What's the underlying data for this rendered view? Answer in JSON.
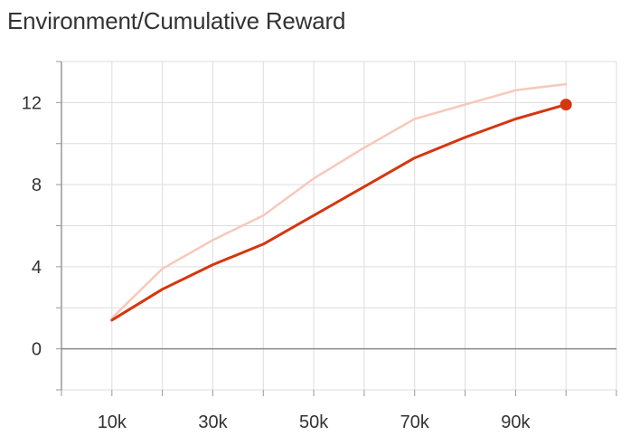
{
  "chart_data": {
    "type": "line",
    "title": "Environment/Cumulative Reward",
    "xlabel": "",
    "ylabel": "",
    "xlim": [
      0,
      110000
    ],
    "ylim": [
      -2,
      14
    ],
    "x_ticks": [
      10000,
      30000,
      50000,
      70000,
      90000
    ],
    "x_tick_labels": [
      "10k",
      "30k",
      "50k",
      "70k",
      "90k"
    ],
    "x_grid": [
      0,
      10000,
      20000,
      30000,
      40000,
      50000,
      60000,
      70000,
      80000,
      90000,
      100000,
      110000
    ],
    "y_ticks": [
      0,
      4,
      8,
      12
    ],
    "y_tick_labels": [
      "0",
      "4",
      "8",
      "12"
    ],
    "y_grid": [
      -2,
      0,
      2,
      4,
      6,
      8,
      10,
      12,
      14
    ],
    "grid": true,
    "series": [
      {
        "role": "raw",
        "color": "#f8c8b9",
        "x": [
          10000,
          20000,
          30000,
          40000,
          50000,
          60000,
          70000,
          80000,
          90000,
          100000
        ],
        "values": [
          1.5,
          3.9,
          5.3,
          6.5,
          8.3,
          9.8,
          11.2,
          11.9,
          12.6,
          12.9
        ]
      },
      {
        "role": "smoothed",
        "color": "#d4370f",
        "x": [
          10000,
          20000,
          30000,
          40000,
          50000,
          60000,
          70000,
          80000,
          90000,
          100000
        ],
        "values": [
          1.4,
          2.9,
          4.1,
          5.1,
          6.5,
          7.9,
          9.3,
          10.3,
          11.2,
          11.9
        ]
      }
    ]
  }
}
